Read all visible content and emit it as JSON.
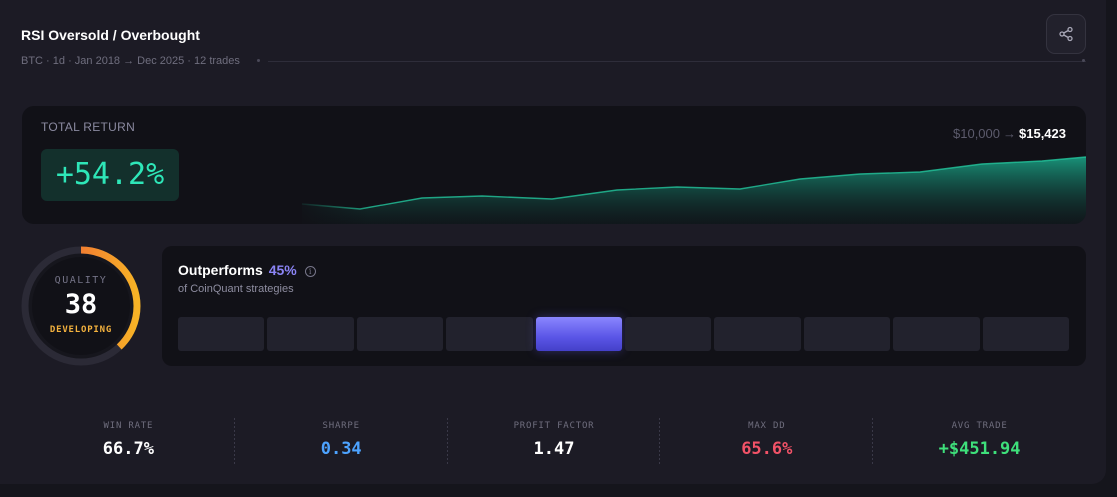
{
  "header": {
    "title": "RSI Oversold / Overbought",
    "subtitle": "BTC · 1d · Jan 2018 → Dec 2025 · 12 trades"
  },
  "total_return": {
    "label": "TOTAL RETURN",
    "value": "+54.2%",
    "start_equity": "$10,000",
    "arrow": "→",
    "end_equity": "$15,423",
    "color": "#2ee6b8"
  },
  "quality": {
    "label": "QUALITY",
    "score": "38",
    "score_fraction": 0.38,
    "status": "DEVELOPING",
    "status_color": "#f4b23e"
  },
  "outperform": {
    "title": "Outperforms",
    "percent": "45%",
    "subtitle": "of CoinQuant strategies",
    "decile_count": 10,
    "active_decile_index": 4
  },
  "stats": [
    {
      "label": "WIN RATE",
      "value": "66.7%",
      "color": "#ffffff"
    },
    {
      "label": "SHARPE",
      "value": "0.34",
      "color": "#4da3ff"
    },
    {
      "label": "PROFIT FACTOR",
      "value": "1.47",
      "color": "#ffffff"
    },
    {
      "label": "MAX DD",
      "value": "65.6%",
      "color": "#f25267"
    },
    {
      "label": "AVG TRADE",
      "value": "+$451.94",
      "color": "#3ee07b"
    }
  ],
  "icons": {
    "share": "share-icon",
    "info": "info-icon"
  }
}
